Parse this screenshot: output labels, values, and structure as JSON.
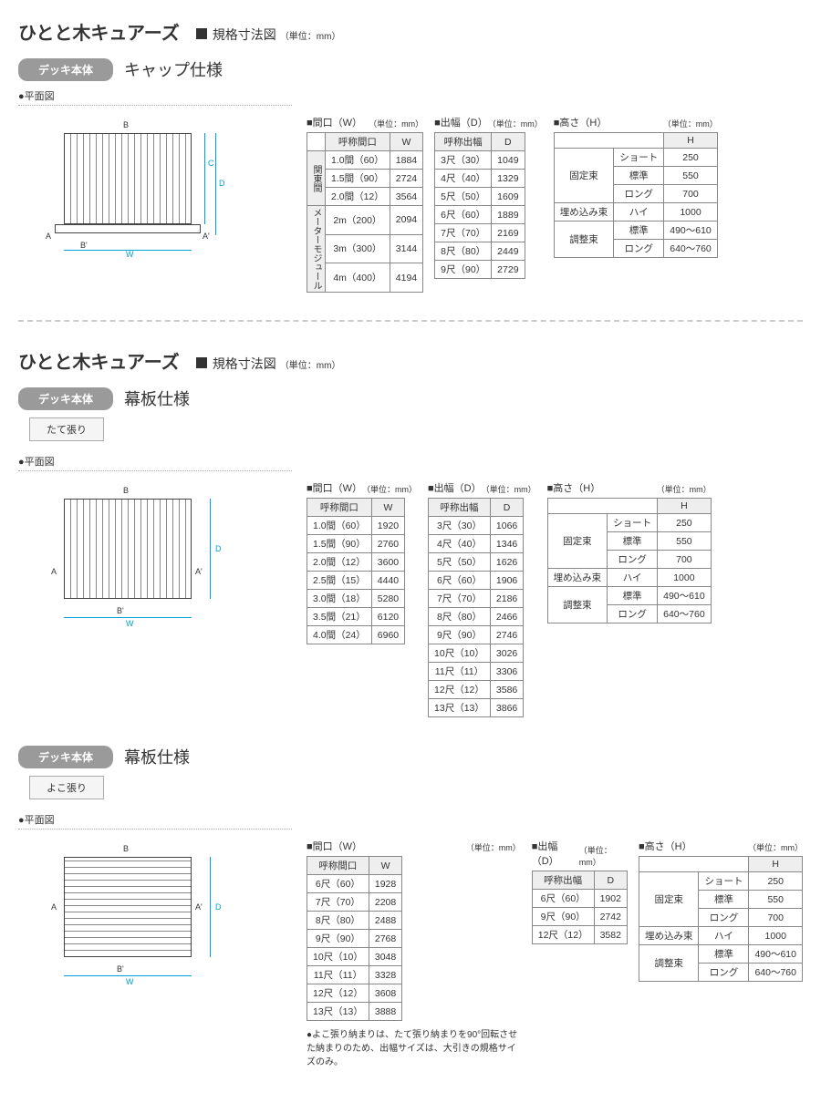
{
  "product_name": "ひとと木キュアーズ",
  "spec_drawing_label": "規格寸法図",
  "unit_note": "（単位：mm）",
  "deck_body_label": "デッキ本体",
  "plan_view_label": "●平面図",
  "section1": {
    "spec": "キャップ仕様",
    "tableW": {
      "title": "■間口（W）",
      "unit": "（単位：mm）",
      "col1": "呼称間口",
      "col2": "W",
      "cat1": "関東間",
      "cat2": "メーターモジュール",
      "rows1": [
        [
          "1.0間（60）",
          "1884"
        ],
        [
          "1.5間（90）",
          "2724"
        ],
        [
          "2.0間（12）",
          "3564"
        ]
      ],
      "rows2": [
        [
          "2m（200）",
          "2094"
        ],
        [
          "3m（300）",
          "3144"
        ],
        [
          "4m（400）",
          "4194"
        ]
      ]
    },
    "tableD": {
      "title": "■出幅（D）",
      "unit": "（単位：mm）",
      "col1": "呼称出幅",
      "col2": "D",
      "rows": [
        [
          "3尺（30）",
          "1049"
        ],
        [
          "4尺（40）",
          "1329"
        ],
        [
          "5尺（50）",
          "1609"
        ],
        [
          "6尺（60）",
          "1889"
        ],
        [
          "7尺（70）",
          "2169"
        ],
        [
          "8尺（80）",
          "2449"
        ],
        [
          "9尺（90）",
          "2729"
        ]
      ]
    },
    "tableH": {
      "title": "■高さ（H）",
      "unit": "（単位：mm）",
      "col_h": "H",
      "rows": [
        {
          "g": "固定束",
          "span": 3,
          "sub": "ショート",
          "val": "250"
        },
        {
          "sub": "標準",
          "val": "550"
        },
        {
          "sub": "ロング",
          "val": "700"
        },
        {
          "g": "埋め込み束",
          "span": 1,
          "sub": "ハイ",
          "val": "1000"
        },
        {
          "g": "調整束",
          "span": 2,
          "sub": "標準",
          "val": "490～610"
        },
        {
          "sub": "ロング",
          "val": "640～760"
        }
      ]
    }
  },
  "section2": {
    "spec": "幕板仕様",
    "tag": "たて張り",
    "tableW": {
      "title": "■間口（W）",
      "unit": "（単位：mm）",
      "col1": "呼称間口",
      "col2": "W",
      "rows": [
        [
          "1.0間（60）",
          "1920"
        ],
        [
          "1.5間（90）",
          "2760"
        ],
        [
          "2.0間（12）",
          "3600"
        ],
        [
          "2.5間（15）",
          "4440"
        ],
        [
          "3.0間（18）",
          "5280"
        ],
        [
          "3.5間（21）",
          "6120"
        ],
        [
          "4.0間（24）",
          "6960"
        ]
      ]
    },
    "tableD": {
      "title": "■出幅（D）",
      "unit": "（単位：mm）",
      "col1": "呼称出幅",
      "col2": "D",
      "rows": [
        [
          "3尺（30）",
          "1066"
        ],
        [
          "4尺（40）",
          "1346"
        ],
        [
          "5尺（50）",
          "1626"
        ],
        [
          "6尺（60）",
          "1906"
        ],
        [
          "7尺（70）",
          "2186"
        ],
        [
          "8尺（80）",
          "2466"
        ],
        [
          "9尺（90）",
          "2746"
        ],
        [
          "10尺（10）",
          "3026"
        ],
        [
          "11尺（11）",
          "3306"
        ],
        [
          "12尺（12）",
          "3586"
        ],
        [
          "13尺（13）",
          "3866"
        ]
      ]
    }
  },
  "section3": {
    "spec": "幕板仕様",
    "tag": "よこ張り",
    "tableW": {
      "title": "■間口（W）",
      "unit": "（単位：mm）",
      "col1": "呼称間口",
      "col2": "W",
      "rows": [
        [
          "6尺（60）",
          "1928"
        ],
        [
          "7尺（70）",
          "2208"
        ],
        [
          "8尺（80）",
          "2488"
        ],
        [
          "9尺（90）",
          "2768"
        ],
        [
          "10尺（10）",
          "3048"
        ],
        [
          "11尺（11）",
          "3328"
        ],
        [
          "12尺（12）",
          "3608"
        ],
        [
          "13尺（13）",
          "3888"
        ]
      ]
    },
    "tableD": {
      "title": "■出幅（D）",
      "unit": "（単位：mm）",
      "col1": "呼称出幅",
      "col2": "D",
      "rows": [
        [
          "6尺（60）",
          "1902"
        ],
        [
          "9尺（90）",
          "2742"
        ],
        [
          "12尺（12）",
          "3582"
        ]
      ]
    },
    "footnote": "●よこ張り納まりは、たて張り納まりを90°回転させた納まりのため、出幅サイズは、大引きの規格サイズのみ。"
  },
  "diagram_labels": {
    "A": "A",
    "Ap": "A'",
    "B": "B",
    "Bp": "B'",
    "C": "C",
    "D": "D",
    "W": "W"
  }
}
